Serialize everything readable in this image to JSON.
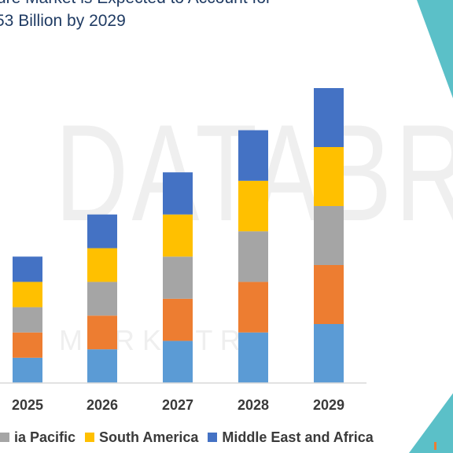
{
  "title_lines": [
    "ure Market is Expected to Account for",
    "53 Billion by 2029"
  ],
  "watermark": {
    "top": "DATABR",
    "bottom": "M A R K E T R E"
  },
  "colors": {
    "background": "#ffffff",
    "title": "#1f3b63",
    "accent": "#5bc0c8",
    "axis": "#d9d9d9",
    "watermark": "#ececec"
  },
  "legend": [
    {
      "label": "ia Pacific",
      "color": "#a5a5a5"
    },
    {
      "label": "South America",
      "color": "#ffc000"
    },
    {
      "label": "Middle East and Africa",
      "color": "#4472c4"
    }
  ],
  "chart_data": {
    "type": "bar",
    "stacked": true,
    "title": "",
    "xlabel": "",
    "ylabel": "",
    "ylim": [
      0,
      7.5
    ],
    "grid": false,
    "legend_position": "bottom",
    "categories": [
      "2025",
      "2026",
      "2027",
      "2028",
      "2029"
    ],
    "series": [
      {
        "name": "",
        "color": "#5b9bd5",
        "values": [
          0.6,
          0.8,
          1.0,
          1.2,
          1.4
        ]
      },
      {
        "name": "",
        "color": "#ed7d31",
        "values": [
          0.6,
          0.8,
          1.0,
          1.2,
          1.4
        ]
      },
      {
        "name": "ia Pacific",
        "color": "#a5a5a5",
        "values": [
          0.6,
          0.8,
          1.0,
          1.2,
          1.4
        ]
      },
      {
        "name": "South America",
        "color": "#ffc000",
        "values": [
          0.6,
          0.8,
          1.0,
          1.2,
          1.4
        ]
      },
      {
        "name": "Middle East and Africa",
        "color": "#4472c4",
        "values": [
          0.6,
          0.8,
          1.0,
          1.2,
          1.4
        ]
      }
    ]
  }
}
